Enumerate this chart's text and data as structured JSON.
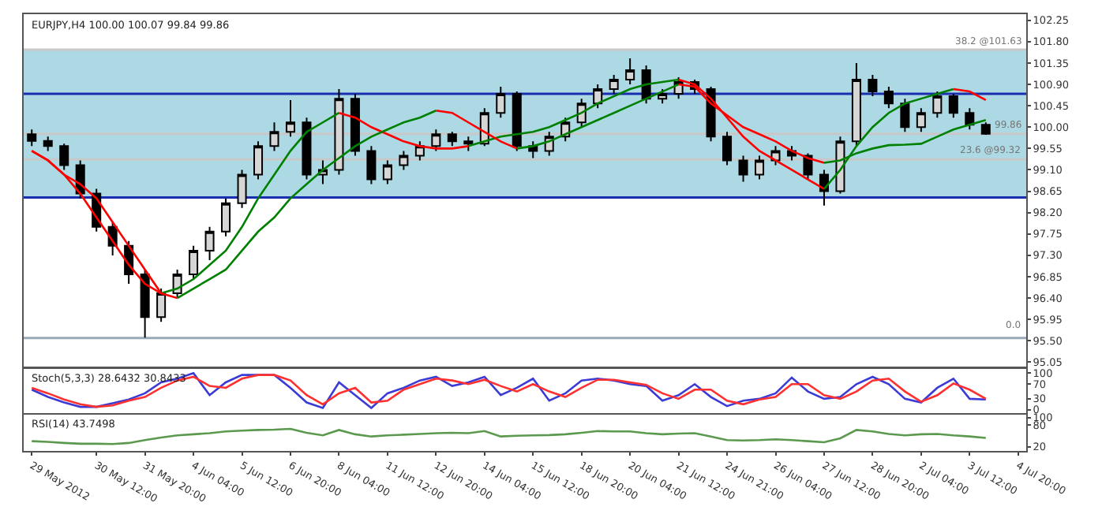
{
  "chart_data": [
    {
      "type": "candlestick",
      "title": "EURJPY,H4 100.00 100.07 99.84 99.86",
      "categories": [
        "29 May 2012",
        null,
        null,
        null,
        "30 May 12:00",
        null,
        null,
        "31 May 20:00",
        null,
        null,
        "4 Jun 04:00",
        null,
        null,
        "5 Jun 12:00",
        null,
        null,
        "6 Jun 20:00",
        null,
        null,
        "8 Jun 04:00",
        null,
        null,
        "11 Jun 12:00",
        null,
        null,
        "12 Jun 20:00",
        null,
        null,
        "14 Jun 04:00",
        null,
        null,
        "15 Jun 12:00",
        null,
        null,
        "18 Jun 20:00",
        null,
        null,
        "20 Jun 04:00",
        null,
        null,
        "21 Jun 12:00",
        null,
        null,
        "24 Jun 21:00",
        null,
        null,
        "26 Jun 04:00",
        null,
        null,
        "27 Jun 12:00",
        null,
        null,
        "28 Jun 20:00",
        null,
        null,
        "2 Jul 04:00",
        null,
        null,
        "3 Jul 12:00",
        null,
        null,
        "4 Jul 20:00"
      ],
      "ohlc": [
        [
          99.85,
          99.95,
          99.6,
          99.71
        ],
        [
          99.71,
          99.8,
          99.5,
          99.6
        ],
        [
          99.6,
          99.65,
          99.1,
          99.2
        ],
        [
          99.2,
          99.3,
          98.5,
          98.6
        ],
        [
          98.6,
          98.7,
          97.8,
          97.9
        ],
        [
          97.9,
          98.0,
          97.3,
          97.5
        ],
        [
          97.5,
          97.6,
          96.7,
          96.9
        ],
        [
          96.9,
          97.0,
          95.57,
          96.0
        ],
        [
          96.0,
          96.6,
          95.9,
          96.5
        ],
        [
          96.5,
          97.0,
          96.4,
          96.9
        ],
        [
          96.9,
          97.5,
          96.8,
          97.4
        ],
        [
          97.4,
          97.9,
          97.2,
          97.8
        ],
        [
          97.8,
          98.5,
          97.7,
          98.4
        ],
        [
          98.4,
          99.1,
          98.3,
          99.0
        ],
        [
          99.0,
          99.7,
          98.9,
          99.6
        ],
        [
          99.6,
          100.1,
          99.5,
          99.9
        ],
        [
          99.9,
          100.57,
          99.8,
          100.1
        ],
        [
          100.1,
          100.2,
          98.9,
          99.0
        ],
        [
          99.0,
          99.3,
          98.8,
          99.1
        ],
        [
          99.1,
          100.8,
          99.0,
          100.6
        ],
        [
          100.6,
          100.7,
          99.4,
          99.5
        ],
        [
          99.5,
          99.6,
          98.8,
          98.9
        ],
        [
          98.9,
          99.3,
          98.8,
          99.2
        ],
        [
          99.2,
          99.5,
          99.1,
          99.4
        ],
        [
          99.4,
          99.7,
          99.3,
          99.6
        ],
        [
          99.6,
          99.95,
          99.5,
          99.85
        ],
        [
          99.85,
          99.9,
          99.6,
          99.7
        ],
        [
          99.7,
          99.8,
          99.5,
          99.65
        ],
        [
          99.65,
          100.4,
          99.6,
          100.3
        ],
        [
          100.3,
          100.85,
          100.2,
          100.7
        ],
        [
          100.7,
          100.75,
          99.5,
          99.6
        ],
        [
          99.6,
          99.7,
          99.35,
          99.5
        ],
        [
          99.5,
          99.9,
          99.4,
          99.8
        ],
        [
          99.8,
          100.2,
          99.7,
          100.1
        ],
        [
          100.1,
          100.6,
          100.0,
          100.5
        ],
        [
          100.5,
          100.9,
          100.4,
          100.8
        ],
        [
          100.8,
          101.1,
          100.7,
          101.0
        ],
        [
          101.0,
          101.45,
          100.9,
          101.2
        ],
        [
          101.2,
          101.3,
          100.5,
          100.6
        ],
        [
          100.6,
          100.8,
          100.5,
          100.7
        ],
        [
          100.7,
          101.05,
          100.6,
          100.95
        ],
        [
          100.95,
          101.0,
          100.7,
          100.8
        ],
        [
          100.8,
          100.85,
          99.7,
          99.8
        ],
        [
          99.8,
          99.9,
          99.2,
          99.3
        ],
        [
          99.3,
          99.4,
          98.85,
          99.0
        ],
        [
          99.0,
          99.4,
          98.9,
          99.3
        ],
        [
          99.3,
          99.6,
          99.2,
          99.5
        ],
        [
          99.5,
          99.6,
          99.3,
          99.4
        ],
        [
          99.4,
          99.45,
          98.9,
          99.0
        ],
        [
          99.0,
          99.1,
          98.35,
          98.65
        ],
        [
          98.65,
          99.8,
          98.6,
          99.7
        ],
        [
          99.7,
          101.35,
          99.6,
          101.0
        ],
        [
          101.0,
          101.1,
          100.65,
          100.75
        ],
        [
          100.75,
          100.85,
          100.4,
          100.5
        ],
        [
          100.5,
          100.6,
          99.9,
          100.0
        ],
        [
          100.0,
          100.4,
          99.9,
          100.3
        ],
        [
          100.3,
          100.75,
          100.2,
          100.65
        ],
        [
          100.65,
          100.7,
          100.2,
          100.3
        ],
        [
          100.3,
          100.4,
          99.95,
          100.05
        ],
        [
          100.05,
          100.1,
          99.84,
          99.86
        ],
        null,
        null
      ],
      "series": [
        {
          "type": "line",
          "color": "#ff0000",
          "values": [
            99.5,
            99.3,
            99.0,
            98.6,
            98.1,
            97.6,
            97.1,
            96.7,
            96.5,
            null,
            null,
            null,
            null,
            null,
            null,
            null,
            null,
            null,
            null,
            100.3,
            100.2,
            100.0,
            99.85,
            99.7,
            99.6,
            99.55,
            99.55,
            99.6,
            null,
            null,
            null,
            null,
            null,
            null,
            null,
            null,
            null,
            null,
            null,
            null,
            101.0,
            100.9,
            100.6,
            100.2,
            99.8,
            99.5,
            99.3,
            99.1,
            98.9,
            98.7,
            null,
            null,
            null,
            null,
            null,
            null,
            null,
            100.8,
            100.75,
            100.57,
            null,
            null
          ]
        },
        {
          "type": "line",
          "color": "#008000",
          "values": [
            null,
            null,
            null,
            null,
            null,
            null,
            null,
            null,
            96.5,
            96.6,
            96.8,
            97.1,
            97.4,
            97.9,
            98.5,
            99.0,
            99.5,
            99.9,
            100.1,
            100.3,
            null,
            null,
            null,
            null,
            null,
            null,
            null,
            99.6,
            99.7,
            99.8,
            99.85,
            99.9,
            100.0,
            100.15,
            100.3,
            100.5,
            100.65,
            100.8,
            100.9,
            100.95,
            101.0,
            null,
            null,
            null,
            null,
            null,
            null,
            null,
            null,
            98.7,
            99.1,
            99.6,
            100.0,
            100.3,
            100.5,
            100.6,
            100.7,
            100.8,
            null,
            null,
            null,
            null
          ]
        },
        {
          "type": "line",
          "color": "#ff0000",
          "values": [
            99.5,
            99.3,
            99.0,
            98.8,
            98.5,
            98.0,
            97.5,
            97.0,
            96.5,
            96.4,
            null,
            null,
            null,
            null,
            null,
            null,
            null,
            null,
            null,
            null,
            null,
            null,
            null,
            null,
            null,
            100.35,
            100.3,
            100.1,
            99.9,
            99.7,
            99.55,
            null,
            null,
            null,
            null,
            null,
            null,
            null,
            null,
            null,
            100.9,
            100.85,
            100.5,
            100.25,
            100.0,
            99.85,
            99.7,
            99.5,
            99.35,
            99.25,
            null,
            null,
            null,
            null,
            null,
            null,
            null,
            null,
            null,
            null,
            null,
            null
          ]
        },
        {
          "type": "line",
          "color": "#008000",
          "values": [
            null,
            null,
            null,
            null,
            null,
            null,
            null,
            null,
            null,
            96.4,
            96.6,
            96.8,
            97.0,
            97.4,
            97.8,
            98.1,
            98.5,
            98.8,
            99.1,
            99.35,
            99.6,
            99.8,
            99.95,
            100.1,
            100.2,
            100.35,
            null,
            null,
            null,
            null,
            99.55,
            99.6,
            99.7,
            99.85,
            100.0,
            100.15,
            100.3,
            100.45,
            100.6,
            100.75,
            100.9,
            null,
            null,
            null,
            null,
            null,
            null,
            null,
            null,
            99.25,
            99.3,
            99.45,
            99.55,
            99.62,
            99.63,
            99.65,
            99.8,
            99.95,
            100.05,
            100.15,
            null,
            null
          ]
        }
      ],
      "ylim": [
        94.96,
        102.38
      ],
      "yticks": [
        95.05,
        {
          "value": 95.5,
          "label": "95.50"
        },
        95.95,
        {
          "value": 96.4,
          "label": "96.40"
        },
        96.85,
        {
          "value": 97.3,
          "label": "97.30"
        },
        97.75,
        {
          "value": 98.2,
          "label": "98.20"
        },
        98.65,
        {
          "value": 99.1,
          "label": "99.10"
        },
        99.55,
        {
          "value": 100.0,
          "label": "100.00"
        },
        100.45,
        {
          "value": 100.9,
          "label": "100.90"
        },
        101.35,
        {
          "value": 101.8,
          "label": "101.80"
        },
        102.25
      ],
      "bands": [
        {
          "axis": "y",
          "from": 98.52,
          "to": 101.62,
          "color": "#acd9e4"
        }
      ],
      "ref_lines": [
        {
          "axis": "y",
          "value": 101.63,
          "label": "38.2 @101.63",
          "color": "#c8c8c8"
        },
        {
          "axis": "y",
          "value": 99.32,
          "label": "23.6 @99.32",
          "color": "#c8c8c8"
        },
        {
          "axis": "y",
          "value": 99.86,
          "label": "99.86",
          "color": "#c8c8c8"
        },
        {
          "axis": "y",
          "value": 95.56,
          "color": "#9aa8b8"
        },
        {
          "axis": "y",
          "value": 100.7,
          "color": "#1a2fb0"
        },
        {
          "axis": "y",
          "value": 98.52,
          "color": "#1a2fb0"
        }
      ],
      "annotations": [
        "0.0"
      ],
      "tick_labels": "y"
    },
    {
      "type": "line",
      "title": "Stoch(5,3,3) 28.6432 30.8433",
      "categories": [
        "29 May 2012",
        null,
        null,
        null,
        "30 May 12:00",
        null,
        null,
        "31 May 20:00",
        null,
        null,
        "4 Jun 04:00",
        null,
        null,
        "5 Jun 12:00",
        null,
        null,
        "6 Jun 20:00",
        null,
        null,
        "8 Jun 04:00",
        null,
        null,
        "11 Jun 12:00",
        null,
        null,
        "12 Jun 20:00",
        null,
        null,
        "14 Jun 04:00",
        null,
        null,
        "15 Jun 12:00",
        null,
        null,
        "18 Jun 20:00",
        null,
        null,
        "20 Jun 04:00",
        null,
        null,
        "21 Jun 12:00",
        null,
        null,
        "24 Jun 21:00",
        null,
        null,
        "26 Jun 04:00",
        null,
        null,
        "27 Jun 12:00",
        null,
        null,
        "28 Jun 20:00",
        null,
        null,
        "2 Jul 04:00",
        null,
        null,
        "3 Jul 12:00",
        null,
        null,
        "4 Jul 20:00"
      ],
      "series": [
        {
          "color": "#3b3bd6",
          "values": [
            55,
            35,
            20,
            8,
            8,
            18,
            28,
            45,
            75,
            85,
            100,
            40,
            75,
            95,
            95,
            95,
            60,
            20,
            5,
            75,
            40,
            5,
            45,
            60,
            80,
            90,
            65,
            75,
            90,
            40,
            60,
            85,
            25,
            45,
            80,
            85,
            80,
            70,
            65,
            25,
            40,
            70,
            35,
            10,
            25,
            30,
            45,
            88,
            50,
            30,
            35,
            70,
            90,
            70,
            30,
            20,
            60,
            85,
            30,
            28,
            null,
            null
          ]
        },
        {
          "color": "#ff3030",
          "values": [
            60,
            45,
            28,
            15,
            8,
            12,
            25,
            35,
            60,
            80,
            90,
            65,
            60,
            85,
            95,
            95,
            80,
            40,
            15,
            45,
            60,
            20,
            25,
            55,
            70,
            85,
            80,
            70,
            82,
            65,
            50,
            70,
            50,
            35,
            60,
            82,
            82,
            75,
            68,
            45,
            30,
            55,
            55,
            25,
            15,
            28,
            35,
            70,
            70,
            40,
            30,
            50,
            80,
            85,
            50,
            22,
            40,
            72,
            55,
            30,
            null,
            null
          ]
        }
      ],
      "ylim": [
        -9,
        111
      ],
      "yticks": [
        0,
        30,
        70,
        100
      ],
      "tick_labels": "y"
    },
    {
      "type": "line",
      "title": "RSI(14) 43.7498",
      "categories": [
        "29 May 2012",
        null,
        null,
        null,
        "30 May 12:00",
        null,
        null,
        "31 May 20:00",
        null,
        null,
        "4 Jun 04:00",
        null,
        null,
        "5 Jun 12:00",
        null,
        null,
        "6 Jun 20:00",
        null,
        null,
        "8 Jun 04:00",
        null,
        null,
        "11 Jun 12:00",
        null,
        null,
        "12 Jun 20:00",
        null,
        null,
        "14 Jun 04:00",
        null,
        null,
        "15 Jun 12:00",
        null,
        null,
        "18 Jun 20:00",
        null,
        null,
        "20 Jun 04:00",
        null,
        null,
        "21 Jun 12:00",
        null,
        null,
        "24 Jun 21:00",
        null,
        null,
        "26 Jun 04:00",
        null,
        null,
        "27 Jun 12:00",
        null,
        null,
        "28 Jun 20:00",
        null,
        null,
        "2 Jul 04:00",
        null,
        null,
        "3 Jul 12:00",
        null,
        null,
        "4 Jul 20:00"
      ],
      "series": [
        {
          "color": "#5b9a4e",
          "values": [
            35,
            33,
            30,
            28,
            28,
            27,
            30,
            38,
            45,
            51,
            54,
            57,
            62,
            64,
            66,
            67,
            69,
            58,
            51,
            66,
            54,
            48,
            51,
            53,
            55,
            57,
            58,
            57,
            63,
            48,
            50,
            51,
            52,
            54,
            58,
            63,
            62,
            62,
            57,
            54,
            56,
            57,
            48,
            38,
            37,
            38,
            40,
            38,
            35,
            32,
            43,
            66,
            62,
            55,
            51,
            54,
            55,
            51,
            48,
            44,
            null,
            null
          ]
        }
      ],
      "ylim": [
        8,
        109
      ],
      "yticks": [
        20,
        80,
        100
      ]
    }
  ]
}
